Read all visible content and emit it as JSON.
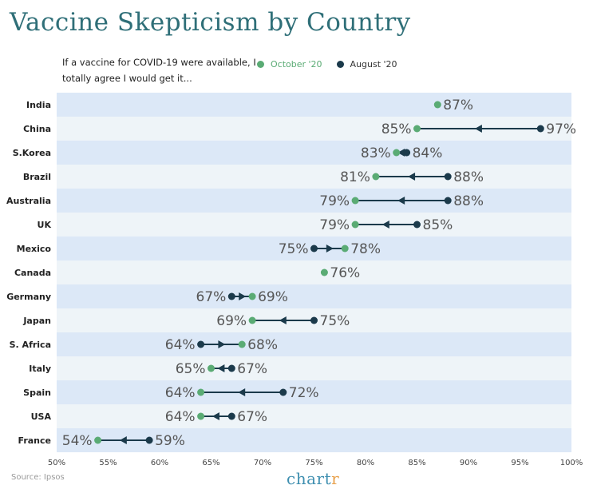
{
  "title": "Vaccine Skepticism by Country",
  "subtitle": "If a vaccine for COVID-19 were available, I totally agree I would get it...",
  "source": "Source: Ipsos",
  "brand": {
    "main": "chart",
    "accent": "r"
  },
  "colors": {
    "october": "#5aab74",
    "august": "#1b3a4b",
    "band_dark": "#dce8f7",
    "band_light": "#eef4f8"
  },
  "chart_data": {
    "type": "dot-arrow",
    "categories": [
      "India",
      "China",
      "S.Korea",
      "Brazil",
      "Australia",
      "UK",
      "Mexico",
      "Canada",
      "Germany",
      "Japan",
      "S. Africa",
      "Italy",
      "Spain",
      "USA",
      "France"
    ],
    "series": [
      {
        "name": "October '20",
        "values": [
          87,
          85,
          83,
          81,
          79,
          79,
          78,
          76,
          69,
          69,
          68,
          65,
          64,
          64,
          54
        ]
      },
      {
        "name": "August '20",
        "values": [
          null,
          97,
          84,
          88,
          88,
          85,
          75,
          null,
          67,
          75,
          64,
          67,
          72,
          67,
          59
        ]
      }
    ],
    "xlim": [
      50,
      100
    ],
    "xticks": [
      50,
      55,
      60,
      65,
      70,
      75,
      80,
      85,
      90,
      95,
      100
    ],
    "xtick_suffix": "%",
    "legend": "top"
  }
}
